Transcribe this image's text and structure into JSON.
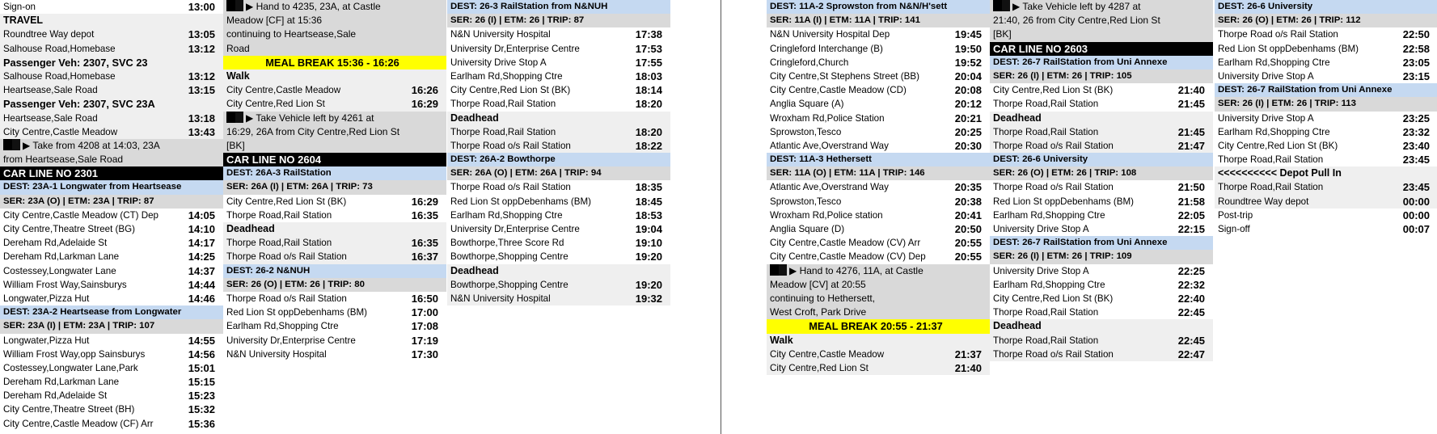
{
  "colors": {
    "dest": "#c5d9f1",
    "ser": "#d9d9d9",
    "section": "#efefef",
    "meal": "#ffff00",
    "car": "#000000"
  },
  "instruction_icon": "black-block-arrow-icon",
  "columns": [
    {
      "rows": [
        {
          "type": "plain",
          "label": "Sign-on",
          "time": "13:00"
        },
        {
          "type": "secb",
          "label": "TRAVEL"
        },
        {
          "type": "sec",
          "label": "Roundtree Way depot",
          "time": "13:05"
        },
        {
          "type": "sec",
          "label": "Salhouse Road,Homebase",
          "time": "13:12"
        },
        {
          "type": "hdr",
          "label": "Passenger Veh: 2307, SVC 23"
        },
        {
          "type": "sec",
          "label": "Salhouse Road,Homebase",
          "time": "13:12"
        },
        {
          "type": "sec",
          "label": "Heartsease,Sale Road",
          "time": "13:15"
        },
        {
          "type": "hdr",
          "label": "Passenger Veh: 2307, SVC 23A"
        },
        {
          "type": "sec",
          "label": "Heartsease,Sale Road",
          "time": "13:18"
        },
        {
          "type": "sec",
          "label": "City Centre,Castle Meadow",
          "time": "13:43"
        },
        {
          "type": "instr",
          "lines": [
            "Take from 4208 at 14:03, 23A",
            "from Heartsease,Sale Road"
          ]
        },
        {
          "type": "car",
          "label": "CAR LINE NO 2301"
        },
        {
          "type": "dest",
          "label": "DEST: 23A-1 Longwater from Heartsease"
        },
        {
          "type": "ser",
          "label": "SER: 23A (O) | ETM: 23A | TRIP: 87"
        },
        {
          "type": "plain",
          "label": "City Centre,Castle Meadow (CT) Dep",
          "time": "14:05"
        },
        {
          "type": "plain",
          "label": "City Centre,Theatre Street (BG)",
          "time": "14:10"
        },
        {
          "type": "plain",
          "label": "Dereham Rd,Adelaide St",
          "time": "14:17"
        },
        {
          "type": "plain",
          "label": "Dereham Rd,Larkman Lane",
          "time": "14:25"
        },
        {
          "type": "plain",
          "label": "Costessey,Longwater Lane",
          "time": "14:37"
        },
        {
          "type": "plain",
          "label": "William Frost Way,Sainsburys",
          "time": "14:44"
        },
        {
          "type": "plain",
          "label": "Longwater,Pizza Hut",
          "time": "14:46"
        },
        {
          "type": "dest",
          "label": "DEST: 23A-2 Heartsease from Longwater"
        },
        {
          "type": "ser",
          "label": "SER: 23A (I) | ETM: 23A | TRIP: 107"
        },
        {
          "type": "plain",
          "label": "Longwater,Pizza Hut",
          "time": "14:55"
        },
        {
          "type": "plain",
          "label": "William Frost Way,opp Sainsburys",
          "time": "14:56"
        },
        {
          "type": "plain",
          "label": "Costessey,Longwater Lane,Park",
          "time": "15:01"
        },
        {
          "type": "plain",
          "label": "Dereham Rd,Larkman Lane",
          "time": "15:15"
        },
        {
          "type": "plain",
          "label": "Dereham Rd,Adelaide St",
          "time": "15:23"
        },
        {
          "type": "plain",
          "label": "City Centre,Theatre Street (BH)",
          "time": "15:32"
        },
        {
          "type": "plain",
          "label": "City Centre,Castle Meadow (CF) Arr",
          "time": "15:36"
        }
      ]
    },
    {
      "rows": [
        {
          "type": "instr",
          "lines": [
            "Hand to 4235, 23A, at Castle",
            "Meadow [CF] at 15:36",
            "continuing to Heartsease,Sale",
            "Road"
          ]
        },
        {
          "type": "meal",
          "label": "MEAL BREAK  15:36 - 16:26"
        },
        {
          "type": "secb",
          "label": "Walk"
        },
        {
          "type": "sec",
          "label": "City Centre,Castle Meadow",
          "time": "16:26"
        },
        {
          "type": "sec",
          "label": "City Centre,Red Lion St",
          "time": "16:29"
        },
        {
          "type": "instr",
          "lines": [
            "Take Vehicle left by 4261 at",
            "16:29, 26A from City Centre,Red Lion St",
            "[BK]"
          ]
        },
        {
          "type": "car",
          "label": "CAR LINE NO 2604"
        },
        {
          "type": "dest",
          "label": "DEST: 26A-3 RailStation"
        },
        {
          "type": "ser",
          "label": "SER: 26A (I) | ETM: 26A | TRIP: 73"
        },
        {
          "type": "plain",
          "label": "City Centre,Red Lion St (BK)",
          "time": "16:29"
        },
        {
          "type": "plain",
          "label": "Thorpe Road,Rail Station",
          "time": "16:35"
        },
        {
          "type": "secb",
          "label": "Deadhead"
        },
        {
          "type": "sec",
          "label": "Thorpe Road,Rail Station",
          "time": "16:35"
        },
        {
          "type": "sec",
          "label": "Thorpe Road o/s Rail Station",
          "time": "16:37"
        },
        {
          "type": "dest",
          "label": "DEST: 26-2 N&NUH"
        },
        {
          "type": "ser",
          "label": "SER: 26 (O) | ETM: 26 | TRIP: 80"
        },
        {
          "type": "plain",
          "label": "Thorpe Road o/s Rail Station",
          "time": "16:50"
        },
        {
          "type": "plain",
          "label": "Red Lion St oppDebenhams (BM)",
          "time": "17:00"
        },
        {
          "type": "plain",
          "label": "Earlham Rd,Shopping Ctre",
          "time": "17:08"
        },
        {
          "type": "plain",
          "label": "University Dr,Enterprise Centre",
          "time": "17:19"
        },
        {
          "type": "plain",
          "label": "N&N University Hospital",
          "time": "17:30"
        }
      ]
    },
    {
      "rows": [
        {
          "type": "dest",
          "label": "DEST: 26-3 RailStation from N&NUH"
        },
        {
          "type": "ser",
          "label": "SER: 26 (I) | ETM: 26 | TRIP: 87"
        },
        {
          "type": "plain",
          "label": "N&N University Hospital",
          "time": "17:38"
        },
        {
          "type": "plain",
          "label": "University Dr,Enterprise Centre",
          "time": "17:53"
        },
        {
          "type": "plain",
          "label": "University Drive Stop A",
          "time": "17:55"
        },
        {
          "type": "plain",
          "label": "Earlham Rd,Shopping Ctre",
          "time": "18:03"
        },
        {
          "type": "plain",
          "label": "City Centre,Red Lion St (BK)",
          "time": "18:14"
        },
        {
          "type": "plain",
          "label": "Thorpe Road,Rail Station",
          "time": "18:20"
        },
        {
          "type": "secb",
          "label": "Deadhead"
        },
        {
          "type": "sec",
          "label": "Thorpe Road,Rail Station",
          "time": "18:20"
        },
        {
          "type": "sec",
          "label": "Thorpe Road o/s Rail Station",
          "time": "18:22"
        },
        {
          "type": "dest",
          "label": "DEST: 26A-2 Bowthorpe"
        },
        {
          "type": "ser",
          "label": "SER: 26A (O) | ETM: 26A | TRIP: 94"
        },
        {
          "type": "plain",
          "label": "Thorpe Road o/s Rail Station",
          "time": "18:35"
        },
        {
          "type": "plain",
          "label": "Red Lion St oppDebenhams (BM)",
          "time": "18:45"
        },
        {
          "type": "plain",
          "label": "Earlham Rd,Shopping Ctre",
          "time": "18:53"
        },
        {
          "type": "plain",
          "label": "University Dr,Enterprise Centre",
          "time": "19:04"
        },
        {
          "type": "plain",
          "label": "Bowthorpe,Three Score Rd",
          "time": "19:10"
        },
        {
          "type": "plain",
          "label": "Bowthorpe,Shopping Centre",
          "time": "19:20"
        },
        {
          "type": "secb",
          "label": "Deadhead"
        },
        {
          "type": "sec",
          "label": "Bowthorpe,Shopping Centre",
          "time": "19:20"
        },
        {
          "type": "sec",
          "label": "N&N University Hospital",
          "time": "19:32"
        }
      ]
    },
    {
      "rows": [
        {
          "type": "dest",
          "label": "DEST: 11A-2 Sprowston from N&N/H'sett"
        },
        {
          "type": "ser",
          "label": "SER: 11A (I) | ETM: 11A | TRIP: 141"
        },
        {
          "type": "plain",
          "label": "N&N University Hospital Dep",
          "time": "19:45"
        },
        {
          "type": "plain",
          "label": "Cringleford Interchange (B)",
          "time": "19:50"
        },
        {
          "type": "plain",
          "label": "Cringleford,Church",
          "time": "19:52"
        },
        {
          "type": "plain",
          "label": "City Centre,St Stephens Street (BB)",
          "time": "20:04"
        },
        {
          "type": "plain",
          "label": "City Centre,Castle Meadow (CD)",
          "time": "20:08"
        },
        {
          "type": "plain",
          "label": "Anglia Square (A)",
          "time": "20:12"
        },
        {
          "type": "plain",
          "label": "Wroxham Rd,Police Station",
          "time": "20:21"
        },
        {
          "type": "plain",
          "label": "Sprowston,Tesco",
          "time": "20:25"
        },
        {
          "type": "plain",
          "label": "Atlantic Ave,Overstrand Way",
          "time": "20:30"
        },
        {
          "type": "dest",
          "label": "DEST: 11A-3 Hethersett"
        },
        {
          "type": "ser",
          "label": "SER: 11A (O) | ETM: 11A | TRIP: 146"
        },
        {
          "type": "plain",
          "label": "Atlantic Ave,Overstrand Way",
          "time": "20:35"
        },
        {
          "type": "plain",
          "label": "Sprowston,Tesco",
          "time": "20:38"
        },
        {
          "type": "plain",
          "label": "Wroxham Rd,Police station",
          "time": "20:41"
        },
        {
          "type": "plain",
          "label": "Anglia Square (D)",
          "time": "20:50"
        },
        {
          "type": "plain",
          "label": "City Centre,Castle Meadow (CV) Arr",
          "time": "20:55"
        },
        {
          "type": "plain",
          "label": "City Centre,Castle Meadow (CV) Dep",
          "time": "20:55"
        },
        {
          "type": "instr",
          "lines": [
            "Hand to 4276, 11A, at Castle",
            "Meadow [CV] at 20:55",
            "continuing to Hethersett,",
            "West Croft, Park Drive"
          ]
        },
        {
          "type": "meal",
          "label": "MEAL BREAK  20:55 - 21:37"
        },
        {
          "type": "secb",
          "label": "Walk"
        },
        {
          "type": "sec",
          "label": "City Centre,Castle Meadow",
          "time": "21:37"
        },
        {
          "type": "sec",
          "label": "City Centre,Red Lion St",
          "time": "21:40"
        }
      ]
    },
    {
      "rows": [
        {
          "type": "instr",
          "lines": [
            "Take Vehicle left by 4287 at",
            "21:40, 26 from City Centre,Red Lion St",
            "[BK]"
          ]
        },
        {
          "type": "car",
          "label": "CAR LINE NO 2603"
        },
        {
          "type": "dest",
          "label": "DEST: 26-7 RailStation from Uni Annexe"
        },
        {
          "type": "ser",
          "label": "SER: 26 (I) | ETM: 26 | TRIP: 105"
        },
        {
          "type": "plain",
          "label": "City Centre,Red Lion St (BK)",
          "time": "21:40"
        },
        {
          "type": "plain",
          "label": "Thorpe Road,Rail Station",
          "time": "21:45"
        },
        {
          "type": "secb",
          "label": "Deadhead"
        },
        {
          "type": "sec",
          "label": "Thorpe Road,Rail Station",
          "time": "21:45"
        },
        {
          "type": "sec",
          "label": "Thorpe Road o/s Rail Station",
          "time": "21:47"
        },
        {
          "type": "dest",
          "label": "DEST: 26-6 University"
        },
        {
          "type": "ser",
          "label": "SER: 26 (O) | ETM: 26 | TRIP: 108"
        },
        {
          "type": "plain",
          "label": "Thorpe Road o/s Rail Station",
          "time": "21:50"
        },
        {
          "type": "plain",
          "label": "Red Lion St oppDebenhams (BM)",
          "time": "21:58"
        },
        {
          "type": "plain",
          "label": "Earlham Rd,Shopping Ctre",
          "time": "22:05"
        },
        {
          "type": "plain",
          "label": "University Drive Stop A",
          "time": "22:15"
        },
        {
          "type": "dest",
          "label": "DEST: 26-7 RailStation from Uni Annexe"
        },
        {
          "type": "ser",
          "label": "SER: 26 (I) | ETM: 26 | TRIP: 109"
        },
        {
          "type": "plain",
          "label": "University Drive Stop A",
          "time": "22:25"
        },
        {
          "type": "plain",
          "label": "Earlham Rd,Shopping Ctre",
          "time": "22:32"
        },
        {
          "type": "plain",
          "label": "City Centre,Red Lion St (BK)",
          "time": "22:40"
        },
        {
          "type": "plain",
          "label": "Thorpe Road,Rail Station",
          "time": "22:45"
        },
        {
          "type": "secb",
          "label": "Deadhead"
        },
        {
          "type": "sec",
          "label": "Thorpe Road,Rail Station",
          "time": "22:45"
        },
        {
          "type": "sec",
          "label": "Thorpe Road o/s Rail Station",
          "time": "22:47"
        }
      ]
    },
    {
      "rows": [
        {
          "type": "dest",
          "label": "DEST: 26-6 University"
        },
        {
          "type": "ser",
          "label": "SER: 26 (O) | ETM: 26 | TRIP: 112"
        },
        {
          "type": "plain",
          "label": "Thorpe Road o/s Rail Station",
          "time": "22:50"
        },
        {
          "type": "plain",
          "label": "Red Lion St oppDebenhams (BM)",
          "time": "22:58"
        },
        {
          "type": "plain",
          "label": "Earlham Rd,Shopping Ctre",
          "time": "23:05"
        },
        {
          "type": "plain",
          "label": "University Drive Stop A",
          "time": "23:15"
        },
        {
          "type": "dest",
          "label": "DEST: 26-7 RailStation from Uni Annexe"
        },
        {
          "type": "ser",
          "label": "SER: 26 (I) | ETM: 26 | TRIP: 113"
        },
        {
          "type": "plain",
          "label": "University Drive Stop A",
          "time": "23:25"
        },
        {
          "type": "plain",
          "label": "Earlham Rd,Shopping Ctre",
          "time": "23:32"
        },
        {
          "type": "plain",
          "label": "City Centre,Red Lion St (BK)",
          "time": "23:40"
        },
        {
          "type": "plain",
          "label": "Thorpe Road,Rail Station",
          "time": "23:45"
        },
        {
          "type": "secb",
          "label": "<<<<<<<<<< Depot Pull In"
        },
        {
          "type": "sec",
          "label": "Thorpe Road,Rail Station",
          "time": "23:45"
        },
        {
          "type": "sec",
          "label": "Roundtree Way depot",
          "time": "00:00"
        },
        {
          "type": "plain",
          "label": "Post-trip",
          "time": "00:00"
        },
        {
          "type": "plain",
          "label": "Sign-off",
          "time": "00:07"
        }
      ]
    }
  ]
}
